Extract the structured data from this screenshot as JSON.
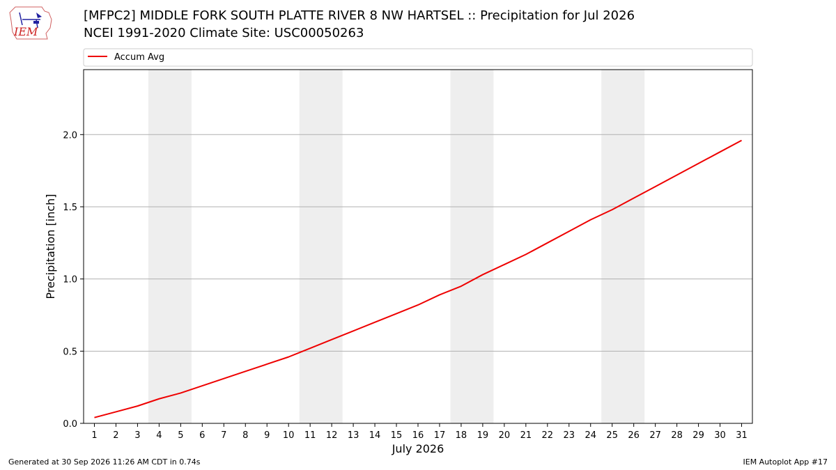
{
  "header": {
    "title_line1": "[MFPC2] MIDDLE FORK SOUTH PLATTE RIVER 8 NW HARTSEL :: Precipitation for Jul 2026",
    "title_line2": "NCEI 1991-2020 Climate Site: USC00050263"
  },
  "logo": {
    "text": "IEM"
  },
  "footer": {
    "generated": "Generated at 30 Sep 2026 11:26 AM CDT in 0.74s",
    "app": "IEM Autoplot App #17"
  },
  "chart_data": {
    "type": "line",
    "xlabel": "July 2026",
    "ylabel": "Precipitation [inch]",
    "xlim": [
      0.5,
      31.5
    ],
    "ylim": [
      0,
      2.45
    ],
    "yticks": [
      0.0,
      0.5,
      1.0,
      1.5,
      2.0
    ],
    "ytick_labels": [
      "0.0",
      "0.5",
      "1.0",
      "1.5",
      "2.0"
    ],
    "x": [
      1,
      2,
      3,
      4,
      5,
      6,
      7,
      8,
      9,
      10,
      11,
      12,
      13,
      14,
      15,
      16,
      17,
      18,
      19,
      20,
      21,
      22,
      23,
      24,
      25,
      26,
      27,
      28,
      29,
      30,
      31
    ],
    "xtick_labels": [
      "1",
      "2",
      "3",
      "4",
      "5",
      "6",
      "7",
      "8",
      "9",
      "10",
      "11",
      "12",
      "13",
      "14",
      "15",
      "16",
      "17",
      "18",
      "19",
      "20",
      "21",
      "22",
      "23",
      "24",
      "25",
      "26",
      "27",
      "28",
      "29",
      "30",
      "31"
    ],
    "weekend_bands": [
      [
        4,
        5
      ],
      [
        11,
        12
      ],
      [
        18,
        19
      ],
      [
        25,
        26
      ]
    ],
    "grid": "y",
    "legend": "top",
    "series": [
      {
        "name": "Accum Avg",
        "color": "#ee0000",
        "values": [
          0.04,
          0.08,
          0.12,
          0.17,
          0.21,
          0.26,
          0.31,
          0.36,
          0.41,
          0.46,
          0.52,
          0.58,
          0.64,
          0.7,
          0.76,
          0.82,
          0.89,
          0.95,
          1.03,
          1.1,
          1.17,
          1.25,
          1.33,
          1.41,
          1.48,
          1.56,
          1.64,
          1.72,
          1.8,
          1.88,
          1.96
        ]
      }
    ]
  },
  "colors": {
    "band": "#eeeeee",
    "grid": "#b0b0b0"
  }
}
